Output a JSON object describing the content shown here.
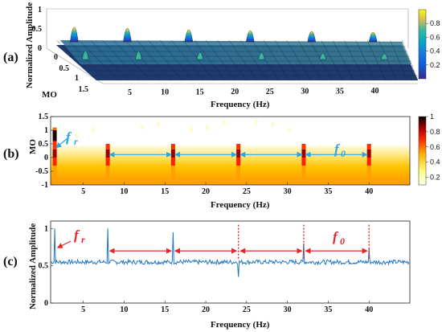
{
  "panel_a": {
    "label": "(a)",
    "ylabel": "Normalized Amplitude",
    "xlabel": "Frequency (Hz)",
    "mo_label": "MO",
    "z_ticks": [
      "0",
      "0.5",
      "1"
    ],
    "mo_ticks": [
      "0",
      "0.5",
      "1",
      "1.5"
    ],
    "freq_ticks": [
      "5",
      "10",
      "15",
      "20",
      "25",
      "30",
      "35",
      "40"
    ],
    "colorbar_ticks": [
      "0.2",
      "0.4",
      "0.6",
      "0.8"
    ]
  },
  "panel_b": {
    "label": "(b)",
    "ylabel": "MO",
    "xlabel": "Frequency (Hz)",
    "annot_fr": "f",
    "annot_fr_sub": "r",
    "annot_f0": "f",
    "annot_f0_sub": "0",
    "yticks": [
      "-1",
      "-0.5",
      "0",
      "0.5",
      "1",
      "1.5"
    ],
    "xticks": [
      "5",
      "10",
      "15",
      "20",
      "25",
      "30",
      "35",
      "40"
    ],
    "colorbar_ticks": [
      "0.2",
      "0.4",
      "0.6",
      "0.8",
      "1"
    ]
  },
  "panel_c": {
    "label": "(c)",
    "ylabel": "Normalized Amplitude",
    "xlabel": "Frequency (Hz)",
    "annot_fr": "f",
    "annot_fr_sub": "r",
    "annot_f0": "f",
    "annot_f0_sub": "0",
    "yticks": [
      "0",
      "0.5",
      "1"
    ],
    "xticks": [
      "5",
      "10",
      "15",
      "20",
      "25",
      "30",
      "35",
      "40"
    ]
  },
  "colors": {
    "line": "#1f77c4",
    "arrow_blue": "#29a8e0",
    "arrow_red": "#e3262b"
  },
  "chart_data": [
    {
      "type": "surface",
      "panel": "a",
      "xlabel": "Frequency (Hz)",
      "ylabel": "MO",
      "zlabel": "Normalized Amplitude",
      "xlim": [
        0,
        45
      ],
      "ylim": [
        -0.5,
        1.5
      ],
      "zlim": [
        0,
        1
      ],
      "peak_frequencies": [
        1.5,
        8,
        16,
        24,
        32,
        40
      ]
    },
    {
      "type": "heatmap",
      "panel": "b",
      "xlabel": "Frequency (Hz)",
      "ylabel": "MO",
      "xlim": [
        1,
        45
      ],
      "ylim": [
        -1,
        1.5
      ],
      "clim": [
        0.1,
        1
      ],
      "peak_frequencies": [
        1.5,
        8,
        16,
        24,
        32,
        40
      ],
      "f0_intervals": [
        [
          8,
          16
        ],
        [
          16,
          24
        ],
        [
          24,
          32
        ],
        [
          32,
          40
        ]
      ]
    },
    {
      "type": "line",
      "panel": "c",
      "xlabel": "Frequency (Hz)",
      "ylabel": "Normalized Amplitude",
      "xlim": [
        1,
        45
      ],
      "ylim": [
        0,
        1.1
      ],
      "baseline": 0.55,
      "peaks": [
        {
          "x": 1.5,
          "y": 1.0
        },
        {
          "x": 8,
          "y": 1.0
        },
        {
          "x": 16,
          "y": 0.95
        },
        {
          "x": 24,
          "y": 0.35
        },
        {
          "x": 32,
          "y": 0.8
        },
        {
          "x": 40,
          "y": 0.73
        }
      ],
      "f0_intervals": [
        [
          8,
          16
        ],
        [
          16,
          24
        ],
        [
          24,
          32
        ],
        [
          32,
          40
        ]
      ]
    }
  ]
}
